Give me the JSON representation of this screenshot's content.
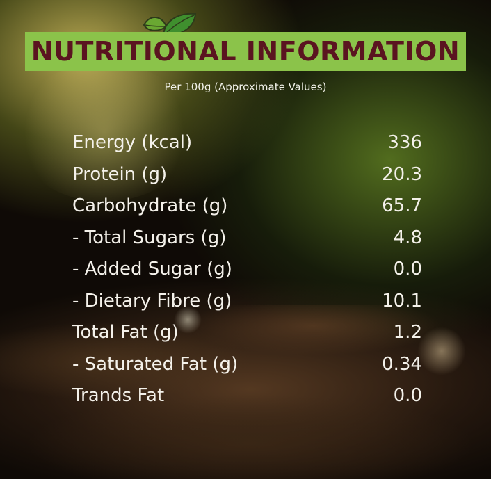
{
  "header": {
    "title": "NUTRITIONAL INFORMATION",
    "subtitle": "Per 100g (Approximate Values)",
    "logo_icon": "leaf-icon",
    "banner_color": "#8bc34a",
    "title_color": "#5a1420"
  },
  "nutrition": {
    "rows": [
      {
        "label": "Energy (kcal)",
        "value": "336"
      },
      {
        "label": "Protein (g)",
        "value": "20.3"
      },
      {
        "label": "Carbohydrate (g)",
        "value": "65.7"
      },
      {
        "label": "- Total Sugars (g)",
        "value": "4.8"
      },
      {
        "label": "- Added Sugar (g)",
        "value": "0.0"
      },
      {
        "label": "- Dietary Fibre (g)",
        "value": "10.1"
      },
      {
        "label": "Total Fat (g)",
        "value": "1.2"
      },
      {
        "label": "- Saturated Fat (g)",
        "value": "0.34"
      },
      {
        "label": "Trands Fat",
        "value": "0.0"
      }
    ]
  }
}
